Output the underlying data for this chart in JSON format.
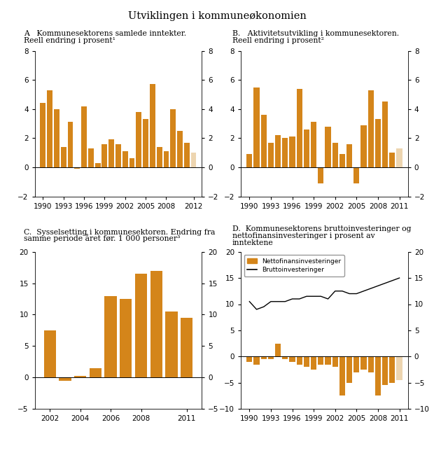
{
  "title": "Utviklingen i kommuneøkonomien",
  "A_title1": "A   Kommunesektorens samlede inntekter.",
  "A_title2": "Reell endring i prosent¹",
  "A_years": [
    1990,
    1991,
    1992,
    1993,
    1994,
    1995,
    1996,
    1997,
    1998,
    1999,
    2000,
    2001,
    2002,
    2003,
    2004,
    2005,
    2006,
    2007,
    2008,
    2009,
    2010,
    2011,
    2012
  ],
  "A_values": [
    4.4,
    5.3,
    4.0,
    1.4,
    3.1,
    -0.1,
    4.2,
    1.3,
    0.3,
    1.6,
    1.9,
    1.6,
    1.1,
    0.6,
    3.8,
    3.3,
    5.7,
    1.4,
    1.1,
    4.0,
    2.5,
    1.7,
    1.0
  ],
  "A_ylim": [
    -2,
    8
  ],
  "A_yticks": [
    -2,
    0,
    2,
    4,
    6,
    8
  ],
  "A_xticks": [
    1990,
    1993,
    1996,
    1999,
    2002,
    2005,
    2008,
    2012
  ],
  "B_title1": "B.   Aktivitetsutvikling i kommunesektoren.",
  "B_title2": "Reell endring i prosent²",
  "B_years": [
    1990,
    1991,
    1992,
    1993,
    1994,
    1995,
    1996,
    1997,
    1998,
    1999,
    2000,
    2001,
    2002,
    2003,
    2004,
    2005,
    2006,
    2007,
    2008,
    2009,
    2010,
    2011
  ],
  "B_values": [
    0.9,
    5.5,
    3.6,
    1.7,
    2.2,
    2.0,
    2.1,
    5.4,
    2.6,
    3.1,
    -1.1,
    2.8,
    1.7,
    0.9,
    1.6,
    -1.1,
    2.9,
    5.3,
    3.3,
    4.5,
    1.0,
    1.3
  ],
  "B_ylim": [
    -2,
    8
  ],
  "B_yticks": [
    -2,
    0,
    2,
    4,
    6,
    8
  ],
  "B_xticks": [
    1990,
    1993,
    1996,
    1999,
    2002,
    2005,
    2008,
    2011
  ],
  "C_title1": "C.  Sysselsetting i kommunesektoren. Endring fra",
  "C_title2": "samme periode året før. 1 000 personer³",
  "C_years": [
    2002,
    2003,
    2004,
    2005,
    2006,
    2007,
    2008,
    2009,
    2010,
    2011
  ],
  "C_values": [
    7.5,
    -0.5,
    0.3,
    1.5,
    13.0,
    12.5,
    16.5,
    17.0,
    10.5,
    9.5
  ],
  "C_ylim": [
    -5,
    20
  ],
  "C_yticks": [
    -5,
    0,
    5,
    10,
    15,
    20
  ],
  "C_xticks": [
    2002,
    2004,
    2006,
    2008,
    2011
  ],
  "D_title1": "D.  Kommunesektorens bruttoinvesteringer og",
  "D_title2": "nettofinansinvesteringer i prosent av",
  "D_title3": "inntektene",
  "D_years": [
    1990,
    1991,
    1992,
    1993,
    1994,
    1995,
    1996,
    1997,
    1998,
    1999,
    2000,
    2001,
    2002,
    2003,
    2004,
    2005,
    2006,
    2007,
    2008,
    2009,
    2010,
    2011
  ],
  "D_bar_values": [
    -1.0,
    -1.5,
    -0.5,
    -0.5,
    2.5,
    -0.5,
    -1.0,
    -1.5,
    -2.0,
    -2.5,
    -1.5,
    -1.5,
    -2.0,
    -7.5,
    -5.0,
    -3.0,
    -2.5,
    -3.0,
    -7.5,
    -5.5,
    -5.0,
    -4.5
  ],
  "D_line_values": [
    10.5,
    9.0,
    9.5,
    10.5,
    10.5,
    10.5,
    11.0,
    11.0,
    11.5,
    11.5,
    11.5,
    11.0,
    12.5,
    12.5,
    12.0,
    12.0,
    12.5,
    13.0,
    13.5,
    14.0,
    14.5,
    15.0
  ],
  "D_ylim": [
    -10,
    20
  ],
  "D_yticks": [
    -10,
    -5,
    0,
    5,
    10,
    15,
    20
  ],
  "D_xticks": [
    1990,
    1993,
    1996,
    1999,
    2002,
    2005,
    2008,
    2011
  ],
  "legend_label_bar": "Nettofinansinvesteringer",
  "legend_label_line": "Bruttoinvesteringer",
  "bar_color_orange": "#D4851A",
  "bar_color_light": "#EDD5B0",
  "line_color": "#000000",
  "bg_color": "#FFFFFF"
}
